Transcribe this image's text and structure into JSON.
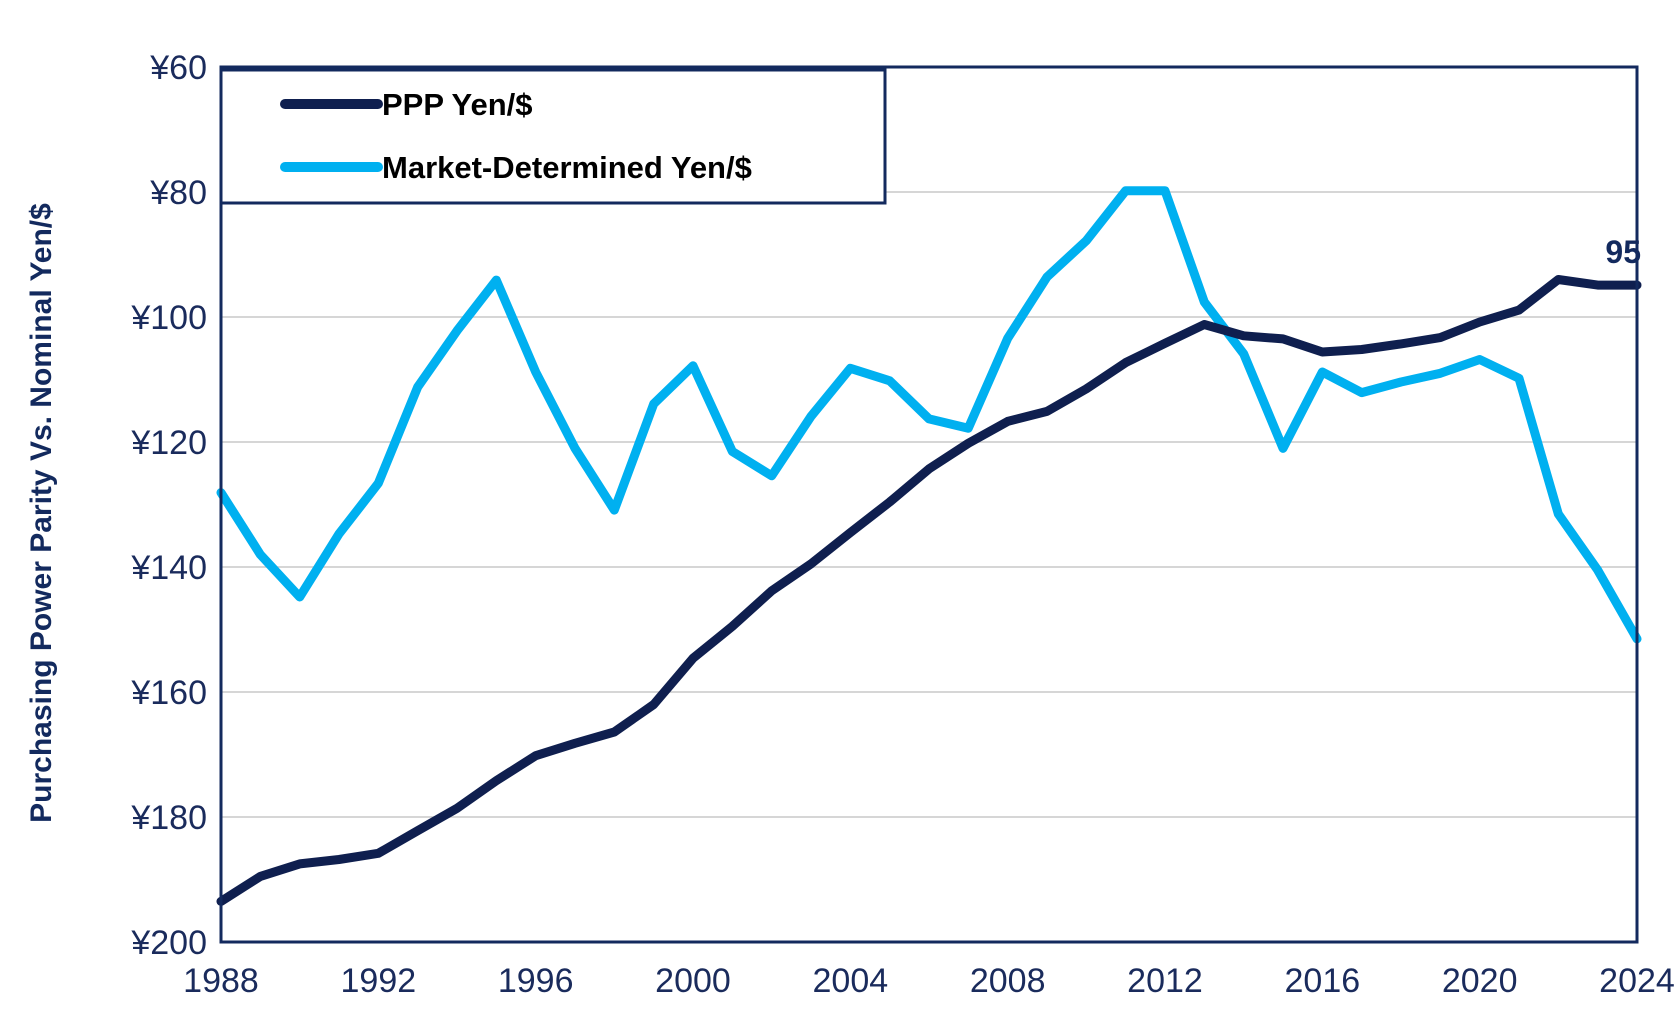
{
  "chart_data": {
    "type": "line",
    "title": "",
    "xlabel": "",
    "ylabel": "Purchasing Power Parity Vs. Nominal Yen/$",
    "xlim": [
      1988,
      2024
    ],
    "ylim": [
      60,
      200
    ],
    "y_inverted": true,
    "x_ticks": [
      1988,
      1992,
      1996,
      2000,
      2004,
      2008,
      2012,
      2016,
      2020,
      2024
    ],
    "x_tick_labels": [
      "1988",
      "1992",
      "1996",
      "2000",
      "2004",
      "2008",
      "2012",
      "2016",
      "2020",
      "2024"
    ],
    "y_ticks": [
      60,
      80,
      100,
      120,
      140,
      160,
      180,
      200
    ],
    "y_tick_labels": [
      "¥60",
      "¥80",
      "¥100",
      "¥120",
      "¥140",
      "¥160",
      "¥180",
      "¥200"
    ],
    "grid": "horizontal",
    "legend_position": "top-left",
    "x": [
      1988,
      1989,
      1990,
      1991,
      1992,
      1993,
      1994,
      1995,
      1996,
      1997,
      1998,
      1999,
      2000,
      2001,
      2002,
      2003,
      2004,
      2005,
      2006,
      2007,
      2008,
      2009,
      2010,
      2011,
      2012,
      2013,
      2014,
      2015,
      2016,
      2017,
      2018,
      2019,
      2020,
      2021,
      2022,
      2023,
      2024
    ],
    "series": [
      {
        "name": "PPP Yen/$",
        "color": "#0f1f4f",
        "values": [
          193.5,
          189.5,
          187.5,
          186.8,
          185.8,
          182.2,
          178.6,
          174.2,
          170.2,
          168.2,
          166.4,
          162.0,
          154.6,
          149.5,
          143.8,
          139.5,
          134.5,
          129.6,
          124.3,
          120.2,
          116.7,
          115.1,
          111.5,
          107.3,
          104.2,
          101.2,
          103.0,
          103.5,
          105.6,
          105.2,
          104.3,
          103.3,
          100.8,
          98.9,
          94.0,
          94.9,
          94.9
        ]
      },
      {
        "name": "Market-Determined Yen/$",
        "color": "#00b0f0",
        "values": [
          128.1,
          138.0,
          144.8,
          134.7,
          126.6,
          111.2,
          102.2,
          94.1,
          108.8,
          121.0,
          130.9,
          113.9,
          107.8,
          121.5,
          125.4,
          115.9,
          108.2,
          110.2,
          116.3,
          117.8,
          103.4,
          93.6,
          87.8,
          79.8,
          79.8,
          97.6,
          105.9,
          121.0,
          108.8,
          112.1,
          110.4,
          109.0,
          106.8,
          109.8,
          131.5,
          140.5,
          151.5
        ]
      }
    ],
    "annotations": [
      {
        "text": "95",
        "x": 2024,
        "y": 94.9,
        "series": "PPP Yen/$"
      }
    ]
  }
}
